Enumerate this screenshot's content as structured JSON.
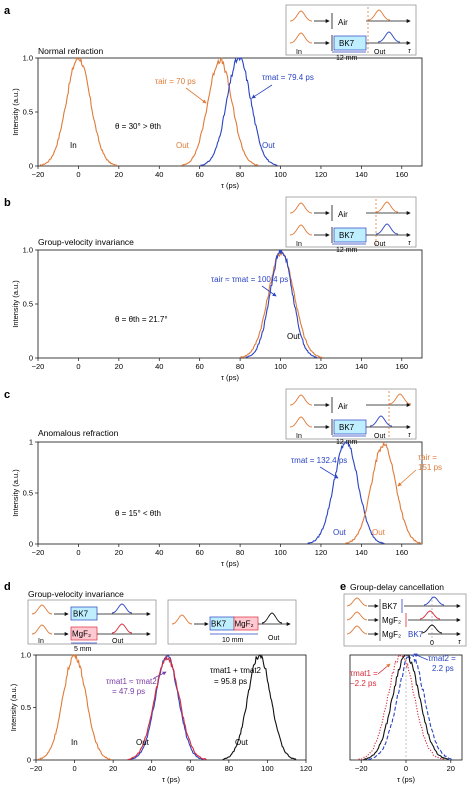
{
  "colors": {
    "orange": "#e07b39",
    "blue": "#2a44c4",
    "purple": "#7a3fa6",
    "red": "#c0392b",
    "crimson": "#d92b3a",
    "black": "#111111",
    "cyan_box": "#bfefff",
    "pink_box": "#ffc9d2",
    "grey_ref": "#999999"
  },
  "panel_labels": {
    "a": "a",
    "b": "b",
    "c": "c",
    "d": "d",
    "e": "e"
  },
  "inset_text": {
    "air": "Air",
    "bk7": "BK7",
    "mgf2": "MgF₂",
    "in": "In",
    "out": "Out",
    "tau": "τ",
    "zero": "0",
    "len_12mm": "12 mm",
    "len_5mm": "5 mm",
    "len_10mm": "10 mm"
  },
  "chart_data": [
    {
      "id": "a",
      "type": "line",
      "title": "Normal refraction",
      "xlabel": "τ (ps)",
      "ylabel": "Intensity (a.u.)",
      "xlim": [
        -20,
        170
      ],
      "ylim": [
        0,
        1.0
      ],
      "xticks": [
        "−20",
        "0",
        "20",
        "40",
        "60",
        "80",
        "100",
        "120",
        "140",
        "160"
      ],
      "xtick_values": [
        -20,
        0,
        20,
        40,
        60,
        80,
        100,
        120,
        140,
        160
      ],
      "yticks": [
        "0",
        "0.5",
        "1.0"
      ],
      "ytick_values": [
        0,
        0.5,
        1.0
      ],
      "series": [
        {
          "name": "In",
          "color": "#e07b39",
          "center": 0,
          "fwhm": 14,
          "peak": 1.0,
          "style": "solid"
        },
        {
          "name": "Out (air)",
          "color": "#e07b39",
          "center": 70,
          "fwhm": 14,
          "peak": 0.98,
          "style": "solid"
        },
        {
          "name": "Out (BK7)",
          "color": "#2a44c4",
          "center": 79.4,
          "fwhm": 14,
          "peak": 1.0,
          "style": "solid"
        }
      ],
      "annotations": {
        "in_label": "In",
        "out_air_label": "Out",
        "out_mat_label": "Out",
        "tau_air": "τair = 70 ps",
        "tau_mat": "τmat = 79.4 ps",
        "angle": "θ = 30° > θth"
      }
    },
    {
      "id": "b",
      "type": "line",
      "title": "Group-velocity invariance",
      "xlabel": "τ (ps)",
      "ylabel": "Intensity (a.u.)",
      "xlim": [
        -20,
        170
      ],
      "ylim": [
        0,
        1.0
      ],
      "xticks": [
        "−20",
        "0",
        "20",
        "40",
        "60",
        "80",
        "100",
        "120",
        "140",
        "160"
      ],
      "xtick_values": [
        -20,
        0,
        20,
        40,
        60,
        80,
        100,
        120,
        140,
        160
      ],
      "yticks": [
        "0",
        "0.5",
        "1.0"
      ],
      "ytick_values": [
        0,
        0.5,
        1.0
      ],
      "series": [
        {
          "name": "Out (air)",
          "color": "#e07b39",
          "center": 100.4,
          "fwhm": 15,
          "peak": 0.98,
          "style": "solid"
        },
        {
          "name": "Out (BK7)",
          "color": "#2a44c4",
          "center": 100.4,
          "fwhm": 13,
          "peak": 1.0,
          "style": "solid"
        }
      ],
      "annotations": {
        "out_label": "Out",
        "tau_eq": "τair ≈ τmat = 100.4 ps",
        "angle": "θ = θth = 21.7°"
      }
    },
    {
      "id": "c",
      "type": "line",
      "title": "Anomalous refraction",
      "xlabel": "τ (ps)",
      "ylabel": "Intensity (a.u.)",
      "xlim": [
        -20,
        170
      ],
      "ylim": [
        0,
        1.0
      ],
      "xticks": [
        "−20",
        "0",
        "20",
        "40",
        "60",
        "80",
        "100",
        "120",
        "140",
        "160"
      ],
      "xtick_values": [
        -20,
        0,
        20,
        40,
        60,
        80,
        100,
        120,
        140,
        160
      ],
      "yticks": [
        "0",
        "0.5",
        "1"
      ],
      "ytick_values": [
        0,
        0.5,
        1.0
      ],
      "series": [
        {
          "name": "Out (BK7)",
          "color": "#2a44c4",
          "center": 132.4,
          "fwhm": 14,
          "peak": 1.0,
          "style": "solid"
        },
        {
          "name": "Out (air)",
          "color": "#e07b39",
          "center": 151,
          "fwhm": 14,
          "peak": 0.98,
          "style": "solid"
        }
      ],
      "annotations": {
        "out_mat_label": "Out",
        "out_air_label": "Out",
        "tau_mat": "τmat = 132.4 ps",
        "tau_air_line1": "τair =",
        "tau_air_line2": "151 ps",
        "angle": "θ = 15° < θth"
      }
    },
    {
      "id": "d",
      "type": "line",
      "title": "Group-velocity invariance",
      "xlabel": "τ (ps)",
      "ylabel": "Intensity (a.u.)",
      "xlim": [
        -20,
        120
      ],
      "ylim": [
        0,
        1.0
      ],
      "xticks": [
        "−20",
        "0",
        "20",
        "40",
        "60",
        "80",
        "100",
        "120"
      ],
      "xtick_values": [
        -20,
        0,
        20,
        40,
        60,
        80,
        100,
        120
      ],
      "yticks": [
        "0",
        "0.5",
        "1.0"
      ],
      "ytick_values": [
        0,
        0.5,
        1.0
      ],
      "series": [
        {
          "name": "In",
          "color": "#e07b39",
          "center": 0,
          "fwhm": 14,
          "peak": 1.0,
          "style": "solid"
        },
        {
          "name": "Out (BK7)",
          "color": "#2a44c4",
          "center": 47.9,
          "fwhm": 14,
          "peak": 0.99,
          "style": "solid"
        },
        {
          "name": "Out (MgF2)",
          "color": "#d92b3a",
          "center": 47.9,
          "fwhm": 15,
          "peak": 0.98,
          "style": "solid"
        },
        {
          "name": "Out (BK7+MgF2)",
          "color": "#111111",
          "center": 95.8,
          "fwhm": 14,
          "peak": 1.0,
          "style": "solid"
        }
      ],
      "annotations": {
        "in_label": "In",
        "out1_label": "Out",
        "out2_label": "Out",
        "tau_eq_line1": "τmat1 ≈ τmat2",
        "tau_eq_line2": "= 47.9 ps",
        "tau_sum_line1": "τmat1 + τmat2",
        "tau_sum_line2": "= 95.8 ps"
      }
    },
    {
      "id": "e",
      "type": "line",
      "title": "Group-delay cancellation",
      "xlabel": "τ (ps)",
      "ylabel": "",
      "xlim": [
        -25,
        25
      ],
      "ylim": [
        0,
        1.0
      ],
      "xticks": [
        "−20",
        "0",
        "20"
      ],
      "xtick_values": [
        -20,
        0,
        20
      ],
      "yticks": [],
      "ytick_values": [],
      "series": [
        {
          "name": "MgF2",
          "color": "#d92b3a",
          "center": -2.2,
          "fwhm": 14,
          "peak": 1.0,
          "style": "dotted"
        },
        {
          "name": "BK7",
          "color": "#2a44c4",
          "center": 2.2,
          "fwhm": 14,
          "peak": 1.0,
          "style": "dashed"
        },
        {
          "name": "MgF2 + BK7",
          "color": "#111111",
          "center": 0,
          "fwhm": 14,
          "peak": 1.0,
          "style": "solid"
        }
      ],
      "annotations": {
        "tau_mat1_line1": "τmat1 =",
        "tau_mat1_line2": "−2.2 ps",
        "tau_mat2_line1": "τmat2 =",
        "tau_mat2_line2": "2.2 ps"
      }
    }
  ]
}
